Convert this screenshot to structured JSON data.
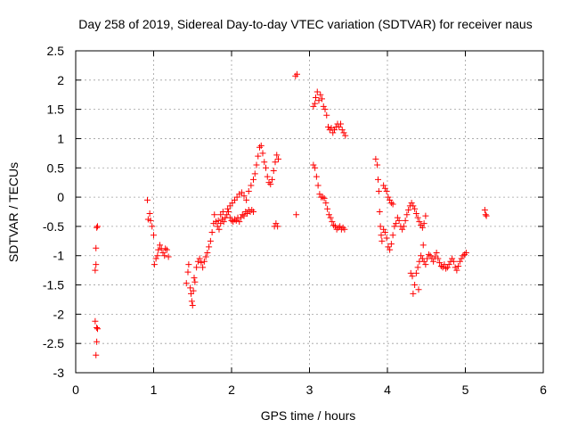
{
  "chart_data": {
    "type": "scatter",
    "title": "Day 258 of 2019, Sidereal Day-to-day VTEC variation (SDTVAR) for receiver naus",
    "xlabel": "GPS time / hours",
    "ylabel": "SDTVAR / TECUs",
    "xlim": [
      0,
      6
    ],
    "ylim": [
      -3,
      2.5
    ],
    "xticks": [
      "0",
      "1",
      "2",
      "3",
      "4",
      "5",
      "6"
    ],
    "yticks": [
      "-3",
      "-2.5",
      "-2",
      "-1.5",
      "-1",
      "-0.5",
      "0",
      "0.5",
      "1",
      "1.5",
      "2",
      "2.5"
    ],
    "grid": true,
    "marker": "+",
    "color": "#ff0000",
    "series": [
      {
        "name": "SDTVAR",
        "points": [
          [
            0.25,
            -1.25
          ],
          [
            0.26,
            -1.15
          ],
          [
            0.26,
            -0.87
          ],
          [
            0.27,
            -0.52
          ],
          [
            0.28,
            -0.5
          ],
          [
            0.25,
            -2.12
          ],
          [
            0.27,
            -2.23
          ],
          [
            0.28,
            -2.25
          ],
          [
            0.27,
            -2.47
          ],
          [
            0.26,
            -2.7
          ],
          [
            0.92,
            -0.05
          ],
          [
            0.93,
            -0.38
          ],
          [
            0.95,
            -0.28
          ],
          [
            0.96,
            -0.4
          ],
          [
            0.98,
            -0.5
          ],
          [
            1.0,
            -0.65
          ],
          [
            1.01,
            -1.15
          ],
          [
            1.03,
            -1.05
          ],
          [
            1.05,
            -1.0
          ],
          [
            1.06,
            -0.9
          ],
          [
            1.08,
            -0.82
          ],
          [
            1.1,
            -0.88
          ],
          [
            1.12,
            -0.95
          ],
          [
            1.14,
            -1.0
          ],
          [
            1.15,
            -0.88
          ],
          [
            1.17,
            -0.9
          ],
          [
            1.19,
            -1.02
          ],
          [
            1.42,
            -1.47
          ],
          [
            1.44,
            -1.28
          ],
          [
            1.45,
            -1.15
          ],
          [
            1.47,
            -1.55
          ],
          [
            1.48,
            -1.65
          ],
          [
            1.49,
            -1.78
          ],
          [
            1.5,
            -1.85
          ],
          [
            1.51,
            -1.6
          ],
          [
            1.52,
            -1.38
          ],
          [
            1.53,
            -1.45
          ],
          [
            1.55,
            -1.2
          ],
          [
            1.57,
            -1.1
          ],
          [
            1.59,
            -1.05
          ],
          [
            1.61,
            -1.12
          ],
          [
            1.63,
            -1.2
          ],
          [
            1.65,
            -1.1
          ],
          [
            1.67,
            -1.02
          ],
          [
            1.69,
            -0.95
          ],
          [
            1.71,
            -0.85
          ],
          [
            1.73,
            -0.75
          ],
          [
            1.75,
            -0.6
          ],
          [
            1.77,
            -0.45
          ],
          [
            1.78,
            -0.3
          ],
          [
            1.8,
            -0.42
          ],
          [
            1.82,
            -0.5
          ],
          [
            1.84,
            -0.55
          ],
          [
            1.86,
            -0.45
          ],
          [
            1.88,
            -0.38
          ],
          [
            1.9,
            -0.42
          ],
          [
            1.92,
            -0.35
          ],
          [
            1.94,
            -0.3
          ],
          [
            1.96,
            -0.25
          ],
          [
            1.98,
            -0.35
          ],
          [
            2.0,
            -0.4
          ],
          [
            2.02,
            -0.42
          ],
          [
            2.04,
            -0.38
          ],
          [
            2.06,
            -0.4
          ],
          [
            2.08,
            -0.35
          ],
          [
            2.1,
            -0.42
          ],
          [
            2.12,
            -0.35
          ],
          [
            2.14,
            -0.3
          ],
          [
            2.16,
            -0.32
          ],
          [
            2.18,
            -0.25
          ],
          [
            2.2,
            -0.28
          ],
          [
            2.22,
            -0.22
          ],
          [
            2.24,
            -0.25
          ],
          [
            2.26,
            -0.22
          ],
          [
            2.28,
            -0.25
          ],
          [
            1.83,
            -0.4
          ],
          [
            1.86,
            -0.3
          ],
          [
            1.89,
            -0.25
          ],
          [
            1.92,
            -0.35
          ],
          [
            1.95,
            -0.2
          ],
          [
            1.98,
            -0.15
          ],
          [
            2.01,
            -0.1
          ],
          [
            2.04,
            -0.05
          ],
          [
            2.07,
            0.0
          ],
          [
            2.1,
            0.05
          ],
          [
            2.13,
            0.08
          ],
          [
            2.16,
            0.02
          ],
          [
            2.19,
            -0.05
          ],
          [
            2.22,
            0.1
          ],
          [
            2.25,
            0.2
          ],
          [
            2.28,
            0.3
          ],
          [
            2.3,
            0.4
          ],
          [
            2.32,
            0.55
          ],
          [
            2.34,
            0.7
          ],
          [
            2.36,
            0.85
          ],
          [
            2.38,
            0.88
          ],
          [
            2.4,
            0.75
          ],
          [
            2.42,
            0.6
          ],
          [
            2.44,
            0.5
          ],
          [
            2.46,
            0.35
          ],
          [
            2.48,
            0.25
          ],
          [
            2.5,
            0.22
          ],
          [
            2.52,
            0.3
          ],
          [
            2.54,
            0.45
          ],
          [
            2.56,
            0.6
          ],
          [
            2.58,
            0.72
          ],
          [
            2.6,
            0.65
          ],
          [
            2.55,
            -0.5
          ],
          [
            2.57,
            -0.45
          ],
          [
            2.59,
            -0.5
          ],
          [
            2.82,
            2.07
          ],
          [
            2.84,
            2.1
          ],
          [
            2.83,
            -0.3
          ],
          [
            3.05,
            1.55
          ],
          [
            3.07,
            1.6
          ],
          [
            3.08,
            1.7
          ],
          [
            3.1,
            1.8
          ],
          [
            3.12,
            1.65
          ],
          [
            3.14,
            1.75
          ],
          [
            3.16,
            1.68
          ],
          [
            3.18,
            1.55
          ],
          [
            3.2,
            1.5
          ],
          [
            3.22,
            1.4
          ],
          [
            3.24,
            1.2
          ],
          [
            3.26,
            1.15
          ],
          [
            3.28,
            1.18
          ],
          [
            3.3,
            1.1
          ],
          [
            3.32,
            1.15
          ],
          [
            3.34,
            1.2
          ],
          [
            3.36,
            1.25
          ],
          [
            3.38,
            1.2
          ],
          [
            3.4,
            1.25
          ],
          [
            3.42,
            1.15
          ],
          [
            3.44,
            1.1
          ],
          [
            3.46,
            1.05
          ],
          [
            3.05,
            0.55
          ],
          [
            3.07,
            0.5
          ],
          [
            3.09,
            0.35
          ],
          [
            3.11,
            0.2
          ],
          [
            3.13,
            0.05
          ],
          [
            3.15,
            0.0
          ],
          [
            3.17,
            0.0
          ],
          [
            3.19,
            -0.02
          ],
          [
            3.21,
            -0.1
          ],
          [
            3.23,
            -0.2
          ],
          [
            3.25,
            -0.3
          ],
          [
            3.27,
            -0.35
          ],
          [
            3.29,
            -0.42
          ],
          [
            3.31,
            -0.48
          ],
          [
            3.33,
            -0.5
          ],
          [
            3.35,
            -0.55
          ],
          [
            3.37,
            -0.52
          ],
          [
            3.39,
            -0.5
          ],
          [
            3.41,
            -0.55
          ],
          [
            3.43,
            -0.52
          ],
          [
            3.45,
            -0.55
          ],
          [
            3.85,
            0.65
          ],
          [
            3.87,
            0.55
          ],
          [
            3.88,
            0.3
          ],
          [
            3.89,
            0.1
          ],
          [
            3.9,
            -0.25
          ],
          [
            3.91,
            -0.5
          ],
          [
            3.92,
            -0.65
          ],
          [
            3.93,
            -0.75
          ],
          [
            3.95,
            -0.55
          ],
          [
            3.97,
            -0.6
          ],
          [
            3.99,
            -0.7
          ],
          [
            4.01,
            -0.85
          ],
          [
            4.03,
            -0.9
          ],
          [
            4.05,
            -0.8
          ],
          [
            4.07,
            -0.65
          ],
          [
            4.09,
            -0.5
          ],
          [
            4.11,
            -0.45
          ],
          [
            4.13,
            -0.35
          ],
          [
            4.15,
            -0.4
          ],
          [
            4.17,
            -0.5
          ],
          [
            4.19,
            -0.55
          ],
          [
            4.21,
            -0.5
          ],
          [
            4.23,
            -0.4
          ],
          [
            4.25,
            -0.3
          ],
          [
            4.27,
            -0.22
          ],
          [
            4.29,
            -0.15
          ],
          [
            4.31,
            -0.1
          ],
          [
            4.33,
            -0.15
          ],
          [
            4.35,
            -0.2
          ],
          [
            4.37,
            -0.28
          ],
          [
            4.39,
            -0.35
          ],
          [
            4.41,
            -0.42
          ],
          [
            4.43,
            -0.48
          ],
          [
            4.45,
            -0.52
          ],
          [
            4.47,
            -0.45
          ],
          [
            4.49,
            -0.32
          ],
          [
            3.95,
            0.2
          ],
          [
            3.97,
            0.15
          ],
          [
            3.99,
            0.1
          ],
          [
            4.01,
            0.0
          ],
          [
            4.03,
            -0.05
          ],
          [
            4.05,
            -0.1
          ],
          [
            4.07,
            -0.12
          ],
          [
            4.3,
            -1.3
          ],
          [
            4.32,
            -1.35
          ],
          [
            4.33,
            -1.65
          ],
          [
            4.35,
            -1.5
          ],
          [
            4.37,
            -1.3
          ],
          [
            4.39,
            -1.2
          ],
          [
            4.41,
            -1.1
          ],
          [
            4.43,
            -1.0
          ],
          [
            4.45,
            -1.05
          ],
          [
            4.47,
            -1.1
          ],
          [
            4.49,
            -1.15
          ],
          [
            4.51,
            -1.05
          ],
          [
            4.53,
            -0.98
          ],
          [
            4.55,
            -1.0
          ],
          [
            4.57,
            -1.05
          ],
          [
            4.59,
            -1.1
          ],
          [
            4.61,
            -1.02
          ],
          [
            4.63,
            -0.95
          ],
          [
            4.65,
            -1.05
          ],
          [
            4.67,
            -1.12
          ],
          [
            4.69,
            -1.18
          ],
          [
            4.71,
            -1.2
          ],
          [
            4.73,
            -1.15
          ],
          [
            4.75,
            -1.22
          ],
          [
            4.77,
            -1.2
          ],
          [
            4.79,
            -1.15
          ],
          [
            4.81,
            -1.1
          ],
          [
            4.83,
            -1.05
          ],
          [
            4.85,
            -1.1
          ],
          [
            4.87,
            -1.2
          ],
          [
            4.89,
            -1.25
          ],
          [
            4.91,
            -1.18
          ],
          [
            4.93,
            -1.1
          ],
          [
            4.95,
            -1.05
          ],
          [
            4.97,
            -1.0
          ],
          [
            4.99,
            -0.98
          ],
          [
            5.01,
            -0.95
          ],
          [
            4.46,
            -0.82
          ],
          [
            4.4,
            -1.58
          ],
          [
            5.25,
            -0.22
          ],
          [
            5.26,
            -0.3
          ],
          [
            5.27,
            -0.32
          ]
        ]
      }
    ]
  }
}
